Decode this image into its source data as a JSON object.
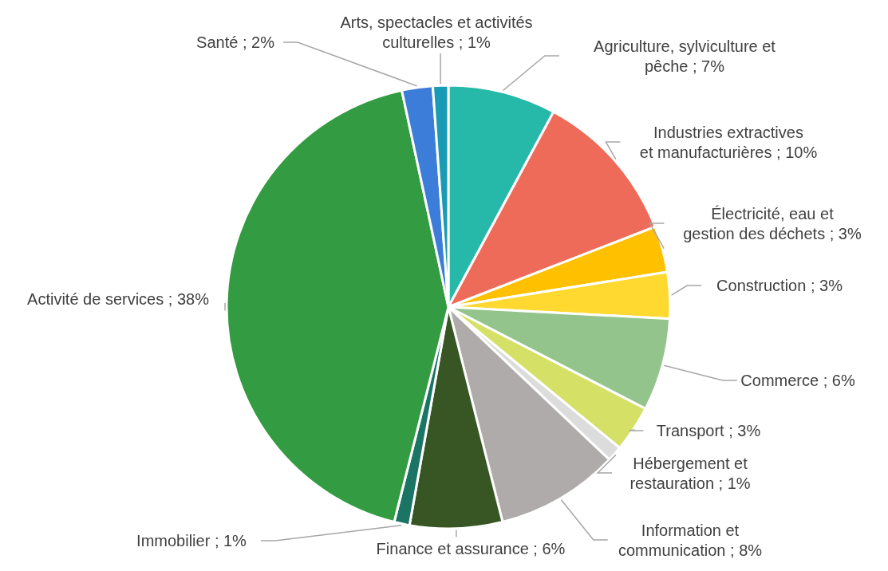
{
  "chart_data": {
    "type": "pie",
    "categories": [
      "Agriculture, sylviculture et pêche",
      "Industries extractives et manufacturières",
      "Électricité, eau et gestion des déchets",
      "Construction",
      "Commerce",
      "Transport",
      "Hébergement et restauration",
      "Information et communication",
      "Finance et assurance",
      "Immobilier",
      "Activité de services",
      "Santé",
      "Arts, spectacles et activités culturelles"
    ],
    "values": [
      7,
      10,
      3,
      3,
      6,
      3,
      1,
      8,
      6,
      1,
      38,
      2,
      1
    ],
    "value_labels": [
      "7%",
      "10%",
      "3%",
      "3%",
      "6%",
      "3%",
      "1%",
      "8%",
      "6%",
      "1%",
      "38%",
      "2%",
      "1%"
    ],
    "colors": [
      "#26b9a9",
      "#ed6b58",
      "#ffc000",
      "#ffd92f",
      "#93c48b",
      "#d4e066",
      "#dcdcdc",
      "#afabab",
      "#375623",
      "#1b7565",
      "#339b41",
      "#3b7dd8",
      "#1a9bb5"
    ],
    "legend": false
  }
}
